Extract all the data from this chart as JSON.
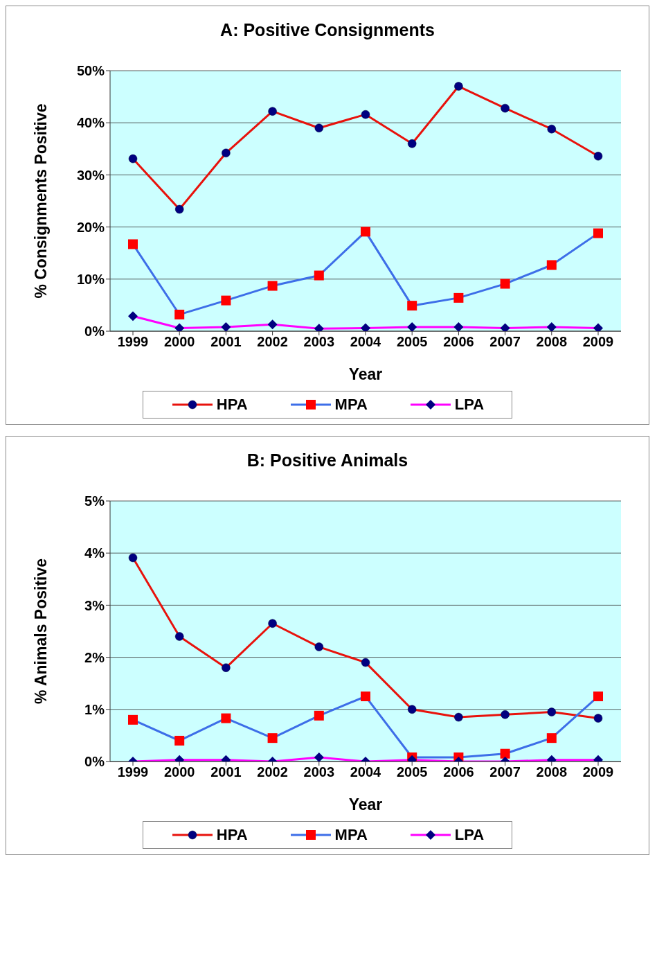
{
  "chart_data": [
    {
      "type": "line",
      "title": "A:  Positive Consignments",
      "xlabel": "Year",
      "ylabel": "% Consignments Positive",
      "categories": [
        "1999",
        "2000",
        "2001",
        "2002",
        "2003",
        "2004",
        "2005",
        "2006",
        "2007",
        "2008",
        "2009"
      ],
      "series": [
        {
          "name": "HPA",
          "color": "#e8120c",
          "marker": "circle",
          "values": [
            33.1,
            23.4,
            34.2,
            42.2,
            39.0,
            41.6,
            36.0,
            47.0,
            42.8,
            38.8,
            33.6
          ]
        },
        {
          "name": "MPA",
          "color": "#3d6ee8",
          "marker": "square",
          "values": [
            16.7,
            3.2,
            5.9,
            8.7,
            10.7,
            19.1,
            4.9,
            6.4,
            9.1,
            12.7,
            18.8
          ]
        },
        {
          "name": "LPA",
          "color": "#ff00ff",
          "marker": "diamond",
          "values": [
            2.9,
            0.6,
            0.8,
            1.3,
            0.5,
            0.6,
            0.8,
            0.8,
            0.6,
            0.8,
            0.6
          ]
        }
      ],
      "ylim": [
        0,
        50
      ],
      "yticks": [
        {
          "value": 0,
          "label": "0%"
        },
        {
          "value": 10,
          "label": "10%"
        },
        {
          "value": 20,
          "label": "20%"
        },
        {
          "value": 30,
          "label": "30%"
        },
        {
          "value": 40,
          "label": "40%"
        },
        {
          "value": 50,
          "label": "50%"
        }
      ],
      "grid": "y",
      "legend": "bottom"
    },
    {
      "type": "line",
      "title": "B:  Positive Animals",
      "xlabel": "Year",
      "ylabel": "% Animals Positive",
      "categories": [
        "1999",
        "2000",
        "2001",
        "2002",
        "2003",
        "2004",
        "2005",
        "2006",
        "2007",
        "2008",
        "2009"
      ],
      "series": [
        {
          "name": "HPA",
          "color": "#e8120c",
          "marker": "circle",
          "values": [
            3.91,
            2.4,
            1.8,
            2.65,
            2.2,
            1.9,
            1.0,
            0.85,
            0.9,
            0.95,
            0.83
          ]
        },
        {
          "name": "MPA",
          "color": "#3d6ee8",
          "marker": "square",
          "values": [
            0.8,
            0.4,
            0.83,
            0.45,
            0.88,
            1.25,
            0.08,
            0.08,
            0.15,
            0.45,
            1.25
          ]
        },
        {
          "name": "LPA",
          "color": "#ff00ff",
          "marker": "diamond",
          "values": [
            0,
            0.03,
            0.03,
            0,
            0.08,
            0,
            0.03,
            0,
            0,
            0.03,
            0.03
          ]
        }
      ],
      "ylim": [
        0,
        5
      ],
      "yticks": [
        {
          "value": 0,
          "label": "0%"
        },
        {
          "value": 1,
          "label": "1%"
        },
        {
          "value": 2,
          "label": "2%"
        },
        {
          "value": 3,
          "label": "3%"
        },
        {
          "value": 4,
          "label": "4%"
        },
        {
          "value": 5,
          "label": "5%"
        }
      ],
      "grid": "y",
      "legend": "bottom"
    }
  ]
}
